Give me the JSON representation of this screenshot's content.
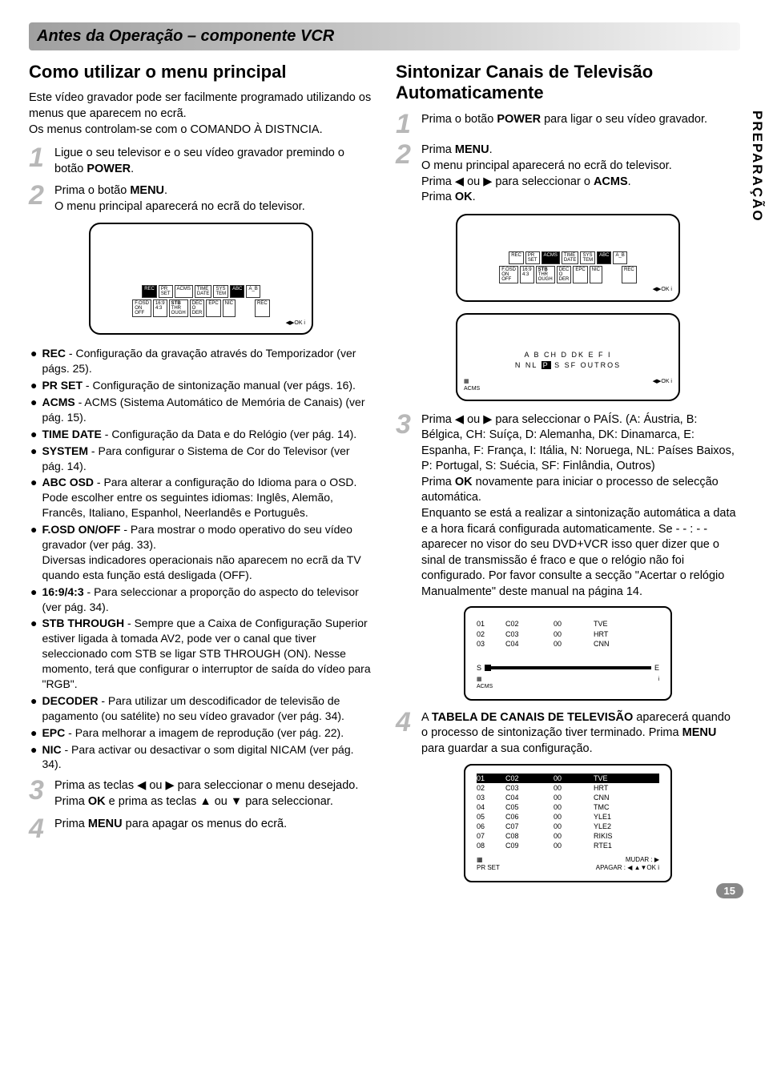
{
  "header": {
    "title": "Antes da Operação – componente VCR"
  },
  "sideTab": "PREPARAÇÃO",
  "pageNumber": "15",
  "left": {
    "title": "Como utilizar o menu principal",
    "intro": "Este vídeo gravador pode ser facilmente programado utilizando os menus que aparecem no ecrã.\nOs menus controlam-se com o COMANDO À DISTNCIA.",
    "step1_a": "Ligue o seu televisor e o seu vídeo gravador premindo o botão ",
    "step1_b": "POWER",
    "step1_c": ".",
    "step2_a": "Prima o botão ",
    "step2_b": "MENU",
    "step2_c": ".",
    "step2_line2": "O menu principal aparecerá no ecrã do televisor.",
    "osd_labels": "REC  PR SET  ACMS  TIME DATE  SYS TEM  ABC OSD  A_B  F.OSD ON OFF  16:9 4:3  STB THR OUGH  DEC ODER  EPC  NIC",
    "bullets": [
      {
        "term": "REC",
        "text": " - Configuração da gravação através do Temporizador (ver págs. 25)."
      },
      {
        "term": "PR SET",
        "text": " - Configuração de sintonização manual (ver págs. 16)."
      },
      {
        "term": "ACMS",
        "text": " - ACMS (Sistema Automático de Memória de Canais) (ver pág. 15)."
      },
      {
        "term": "TIME DATE",
        "text": " - Configuração da Data e do Relógio (ver pág. 14)."
      },
      {
        "term": "SYSTEM",
        "text": " - Para configurar o Sistema de Cor do Televisor (ver pág. 14)."
      },
      {
        "term": "ABC OSD",
        "text": " - Para alterar a configuração do Idioma para o OSD.\nPode escolher entre os seguintes idiomas: Inglês, Alemão, Francês, Italiano, Espanhol, Neerlandês e Português."
      },
      {
        "term": "F.OSD ON/OFF",
        "text": " - Para mostrar o modo operativo do seu vídeo gravador (ver pág. 33).\nDiversas indicadores operacionais não aparecem no ecrã da TV quando esta função está desligada (OFF)."
      },
      {
        "term": "16:9/4:3",
        "text": " - Para seleccionar a proporção do aspecto do televisor (ver pág. 34)."
      },
      {
        "term": "STB THROUGH",
        "text": " - Sempre que a Caixa de Configuração Superior estiver ligada à tomada AV2, pode ver o canal que tiver seleccionado com STB se ligar STB THROUGH (ON). Nesse momento,  terá que configurar o interruptor de saída do vídeo para \"RGB\"."
      },
      {
        "term": "DECODER",
        "text": " - Para utilizar um descodificador de televisão de pagamento (ou satélite) no seu vídeo gravador (ver pág. 34)."
      },
      {
        "term": "EPC",
        "text": " - Para melhorar a imagem de reprodução (ver pág. 22)."
      },
      {
        "term": "NIC",
        "text": " - Para activar ou desactivar o som digital NICAM (ver pág. 34)."
      }
    ],
    "step3_a": "Prima as teclas ◀ ou ▶ para seleccionar o menu desejado.",
    "step3_b": "Prima ",
    "step3_c": "OK",
    "step3_d": " e prima as teclas ▲ ou ▼ para seleccionar.",
    "step4_a": "Prima ",
    "step4_b": "MENU",
    "step4_c": " para apagar os menus do ecrã."
  },
  "right": {
    "title": "Sintonizar Canais de Televisão Automaticamente",
    "step1_a": "Prima o botão ",
    "step1_b": "POWER",
    "step1_c": " para ligar o seu vídeo gravador.",
    "step2_a": "Prima ",
    "step2_b": "MENU",
    "step2_c": ".",
    "step2_line2": "O menu principal aparecerá no ecrã do televisor.",
    "step2_line3_a": "Prima ◀ ou ▶ para seleccionar o ",
    "step2_line3_b": "ACMS",
    "step2_line3_c": ".",
    "step2_line4_a": "Prima ",
    "step2_line4_b": "OK",
    "step2_line4_c": ".",
    "country_row1": "A   B   CH   D   DK   E   F   I",
    "country_row2_pre": "N   NL   ",
    "country_row2_hl": "P",
    "country_row2_post": "   S   SF   OUTROS",
    "step3_a": "Prima ◀ ou ▶ para seleccionar o PAÍS. (A: Áustria, B: Bélgica, CH: Suíça, D: Alemanha, DK: Dinamarca, E: Espanha, F: França, I: Itália, N: Noruega, NL: Países Baixos, P: Portugal, S: Suécia, SF: Finlândia, Outros)",
    "step3_b": "Prima ",
    "step3_c": "OK",
    "step3_d": " novamente para iniciar o processo de selecção automática.",
    "step3_e": "Enquanto se está a realizar a sintonização automática a data e a hora ficará configurada automaticamente. Se  - - : - - aparecer no visor do seu DVD+VCR isso quer dizer que o sinal de transmissão é fraco e que o relógio não foi configurado.  Por favor consulte a secção \"Acertar o relógio Manualmente\" deste manual na página 14.",
    "scan_rows": [
      [
        "01",
        "C02",
        "00",
        "TVE"
      ],
      [
        "02",
        "C03",
        "00",
        "HRT"
      ],
      [
        "03",
        "C04",
        "00",
        "CNN"
      ]
    ],
    "step4_a": "A ",
    "step4_b": "TABELA DE CANAIS DE TELEVISÃO",
    "step4_c": " aparecerá quando o processo de sintonização tiver terminado. Prima ",
    "step4_d": "MENU",
    "step4_e": " para guardar a sua configuração.",
    "table_rows": [
      [
        "01",
        "C02",
        "00",
        "TVE"
      ],
      [
        "02",
        "C03",
        "00",
        "HRT"
      ],
      [
        "03",
        "C04",
        "00",
        "CNN"
      ],
      [
        "04",
        "C05",
        "00",
        "TMC"
      ],
      [
        "05",
        "C06",
        "00",
        "YLE1"
      ],
      [
        "06",
        "C07",
        "00",
        "YLE2"
      ],
      [
        "07",
        "C08",
        "00",
        "RIKIS"
      ],
      [
        "08",
        "C09",
        "00",
        "RTE1"
      ]
    ],
    "table_footer_a": "MUDAR :",
    "table_footer_b": "APAGAR :",
    "acms_label": "ACMS",
    "prset_label": "PR SET"
  }
}
